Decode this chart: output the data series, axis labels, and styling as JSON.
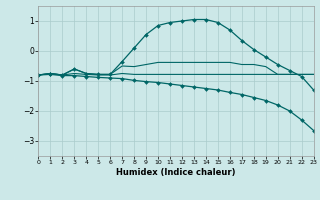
{
  "xlabel": "Humidex (Indice chaleur)",
  "bg_color": "#cce8e8",
  "grid_color": "#aacccc",
  "line_color": "#006666",
  "xlim": [
    0,
    23
  ],
  "ylim": [
    -3.5,
    1.5
  ],
  "yticks": [
    -3,
    -2,
    -1,
    0,
    1
  ],
  "xticks": [
    0,
    1,
    2,
    3,
    4,
    5,
    6,
    7,
    8,
    9,
    10,
    11,
    12,
    13,
    14,
    15,
    16,
    17,
    18,
    19,
    20,
    21,
    22,
    23
  ],
  "curves": [
    {
      "x": [
        0,
        1,
        2,
        3,
        4,
        5,
        6,
        7,
        8,
        9,
        10,
        11,
        12,
        13,
        14,
        15,
        16,
        17,
        18,
        19,
        20,
        21,
        22,
        23
      ],
      "y": [
        -0.8,
        -0.75,
        -0.8,
        -0.75,
        -0.78,
        -0.8,
        -0.8,
        -0.75,
        -0.78,
        -0.78,
        -0.78,
        -0.78,
        -0.78,
        -0.78,
        -0.78,
        -0.78,
        -0.78,
        -0.78,
        -0.78,
        -0.78,
        -0.78,
        -0.78,
        -0.78,
        -0.78
      ],
      "marker": false,
      "lw": 0.8
    },
    {
      "x": [
        0,
        1,
        2,
        3,
        4,
        5,
        6,
        7,
        8,
        9,
        10,
        11,
        12,
        13,
        14,
        15,
        16,
        17,
        18,
        19,
        20,
        21,
        22,
        23
      ],
      "y": [
        -0.8,
        -0.75,
        -0.8,
        -0.6,
        -0.75,
        -0.78,
        -0.78,
        -0.5,
        -0.52,
        -0.45,
        -0.38,
        -0.38,
        -0.38,
        -0.38,
        -0.38,
        -0.38,
        -0.38,
        -0.45,
        -0.45,
        -0.52,
        -0.78,
        -0.78,
        -0.78,
        -0.78
      ],
      "marker": false,
      "lw": 0.8
    },
    {
      "x": [
        0,
        1,
        2,
        3,
        4,
        5,
        6,
        7,
        8,
        9,
        10,
        11,
        12,
        13,
        14,
        15,
        16,
        17,
        18,
        19,
        20,
        21,
        22,
        23
      ],
      "y": [
        -0.8,
        -0.75,
        -0.8,
        -0.6,
        -0.75,
        -0.78,
        -0.78,
        -0.35,
        0.1,
        0.55,
        0.85,
        0.95,
        1.0,
        1.05,
        1.05,
        0.95,
        0.7,
        0.35,
        0.05,
        -0.2,
        -0.45,
        -0.65,
        -0.85,
        -1.3
      ],
      "marker": true,
      "lw": 0.9
    },
    {
      "x": [
        0,
        1,
        2,
        3,
        4,
        5,
        6,
        7,
        8,
        9,
        10,
        11,
        12,
        13,
        14,
        15,
        16,
        17,
        18,
        19,
        20,
        21,
        22,
        23
      ],
      "y": [
        -0.8,
        -0.78,
        -0.82,
        -0.82,
        -0.85,
        -0.88,
        -0.9,
        -0.92,
        -0.98,
        -1.02,
        -1.05,
        -1.1,
        -1.15,
        -1.2,
        -1.25,
        -1.3,
        -1.38,
        -1.45,
        -1.55,
        -1.65,
        -1.8,
        -2.0,
        -2.3,
        -2.65
      ],
      "marker": true,
      "lw": 0.9
    }
  ]
}
